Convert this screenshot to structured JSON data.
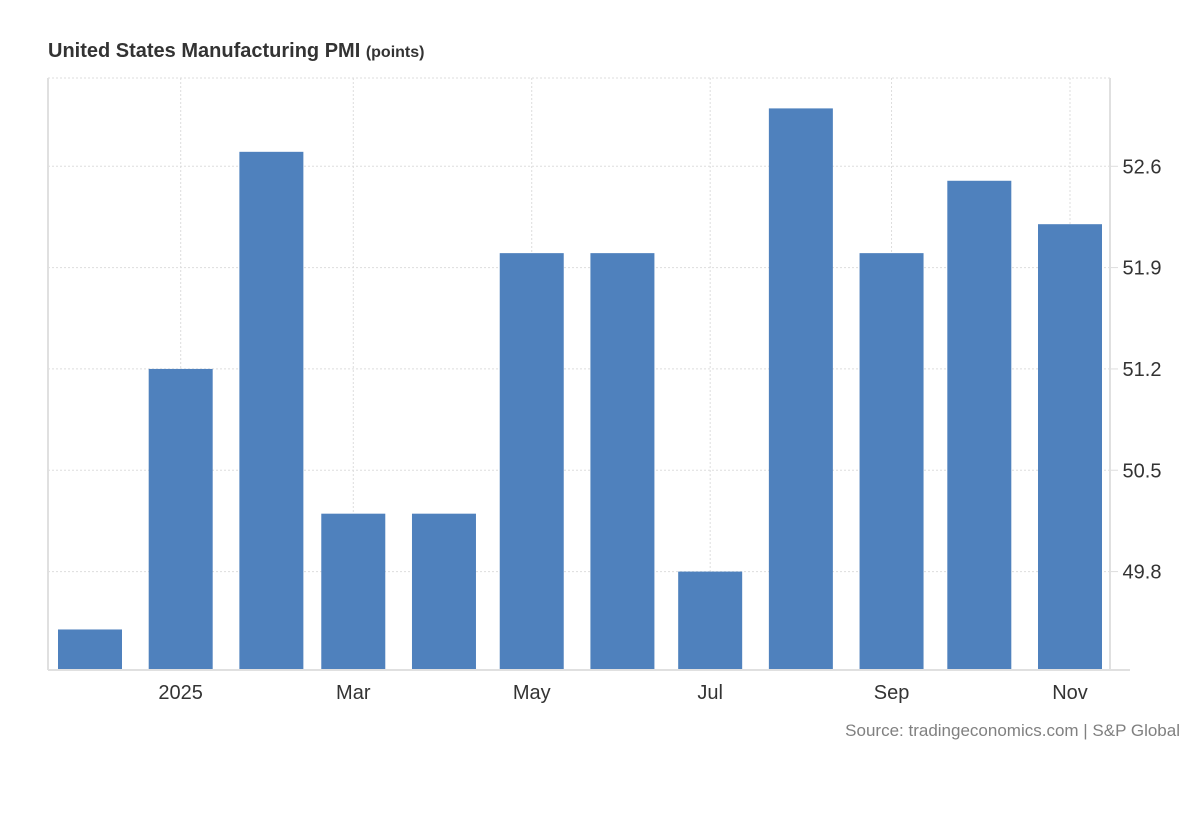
{
  "chart_data": {
    "type": "bar",
    "title": "United States Manufacturing PMI",
    "unit": "(points)",
    "source": "Source: tradingeconomics.com | S&P Global",
    "dates": [
      "2024-12-01",
      "2025-01-01",
      "2025-02-01",
      "2025-03-01",
      "2025-04-01",
      "2025-05-01",
      "2025-06-01",
      "2025-07-01",
      "2025-08-01",
      "2025-09-01",
      "2025-10-01",
      "2025-11-01"
    ],
    "values": [
      49.4,
      51.2,
      52.7,
      50.2,
      50.2,
      52.0,
      52.0,
      49.8,
      53.0,
      52.0,
      52.5,
      52.2
    ],
    "ylim": [
      49.12,
      53.21
    ],
    "yticks": [
      49.8,
      50.5,
      51.2,
      51.9,
      52.6
    ],
    "ytick_labels": [
      "49.8",
      "50.5",
      "51.2",
      "51.9",
      "52.6"
    ],
    "xticks": [
      {
        "date": "2025-01-01",
        "label": "2025"
      },
      {
        "date": "2025-03-01",
        "label": "Mar"
      },
      {
        "date": "2025-05-01",
        "label": "May"
      },
      {
        "date": "2025-07-01",
        "label": "Jul"
      },
      {
        "date": "2025-09-01",
        "label": "Sep"
      },
      {
        "date": "2025-11-01",
        "label": "Nov"
      }
    ],
    "xlabel": "",
    "ylabel": "",
    "grid": true,
    "bar_color": "#4f81bd"
  }
}
